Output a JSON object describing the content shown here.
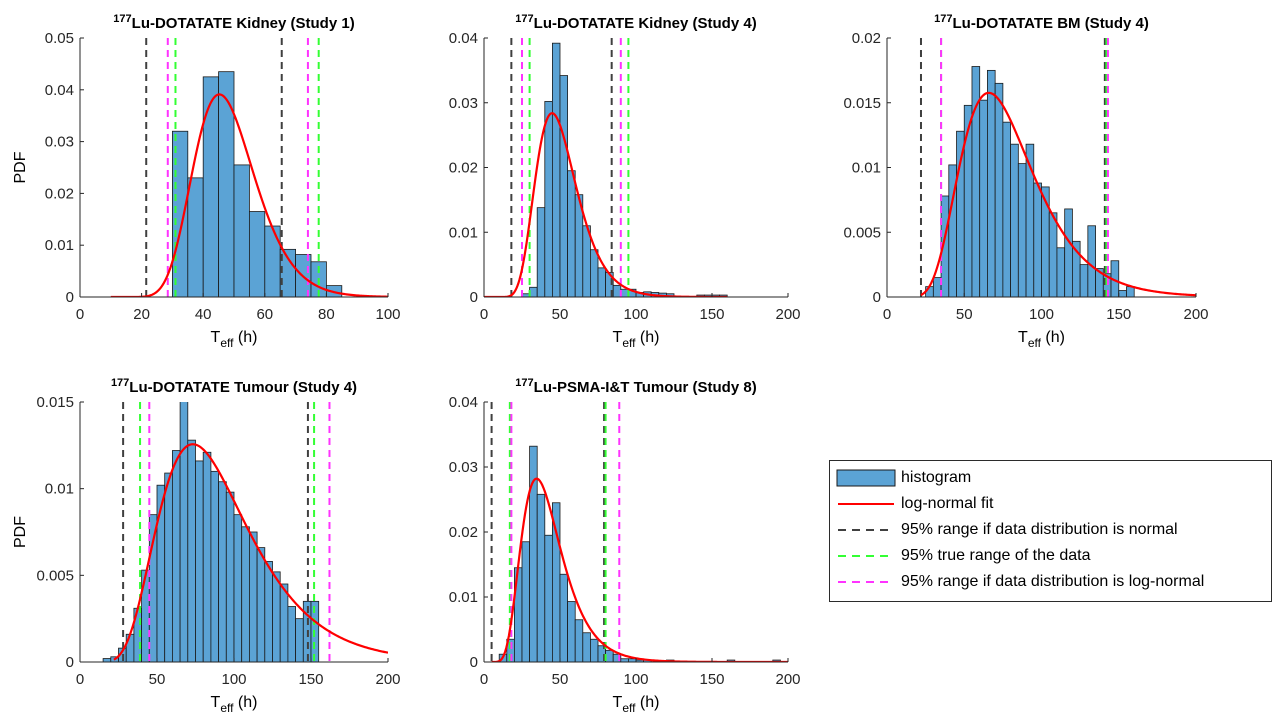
{
  "colors": {
    "histogram_fill": "#5ba3d5",
    "histogram_edge": "#1a1a1a",
    "fit_line": "#ff0000",
    "normal_range": "#404040",
    "true_range": "#33ff33",
    "lognormal_range": "#ff33ff"
  },
  "legend": {
    "items": [
      {
        "key": "histogram",
        "label": "histogram"
      },
      {
        "key": "fit",
        "label": "log-normal fit"
      },
      {
        "key": "normal",
        "label": "95% range if data distribution is normal"
      },
      {
        "key": "true",
        "label": "95% true range of the data"
      },
      {
        "key": "lognormal",
        "label": "95% range if data distribution is log-normal"
      }
    ]
  },
  "chart_data": [
    {
      "type": "bar",
      "title_sup": "177",
      "title": "Lu-DOTATATE Kidney (Study 1)",
      "xlabel_main": "T",
      "xlabel_sub": "eff",
      "xlabel_unit": " (h)",
      "ylabel": "PDF",
      "xlim": [
        0,
        100
      ],
      "ylim": [
        0,
        0.05
      ],
      "xticks": [
        0,
        20,
        40,
        60,
        80,
        100
      ],
      "yticks": [
        0,
        0.01,
        0.02,
        0.03,
        0.04,
        0.05
      ],
      "yticklabels": [
        "0",
        "0.01",
        "0.02",
        "0.03",
        "0.04",
        "0.05"
      ],
      "bin_edges": [
        30,
        35,
        40,
        45,
        50,
        55,
        60,
        65,
        70,
        75,
        80,
        85
      ],
      "bin_values": [
        0.032,
        0.023,
        0.0425,
        0.0435,
        0.0255,
        0.0165,
        0.0137,
        0.0092,
        0.0082,
        0.0068,
        0.0022
      ],
      "fit_lognormal": {
        "median": 47.5,
        "sigma": 0.22,
        "x_start": 10,
        "x_end": 100
      },
      "range_normal": [
        21.5,
        65.5
      ],
      "range_true": [
        31,
        77.5
      ],
      "range_lognormal": [
        28.5,
        74
      ]
    },
    {
      "type": "bar",
      "title_sup": "177",
      "title": "Lu-DOTATATE Kidney (Study 4)",
      "xlabel_main": "T",
      "xlabel_sub": "eff",
      "xlabel_unit": " (h)",
      "ylabel": "",
      "xlim": [
        0,
        200
      ],
      "ylim": [
        0,
        0.04
      ],
      "xticks": [
        0,
        50,
        100,
        150,
        200
      ],
      "yticks": [
        0,
        0.01,
        0.02,
        0.03,
        0.04
      ],
      "yticklabels": [
        "0",
        "0.01",
        "0.02",
        "0.03",
        "0.04"
      ],
      "bin_edges": [
        25,
        30,
        35,
        40,
        45,
        50,
        55,
        60,
        65,
        70,
        75,
        80,
        85,
        90,
        95,
        100,
        105,
        110,
        115,
        120,
        125,
        130,
        135,
        140,
        145,
        150,
        155,
        160
      ],
      "bin_values": [
        0.0005,
        0.0015,
        0.0138,
        0.0302,
        0.0392,
        0.0342,
        0.0195,
        0.0158,
        0.011,
        0.0073,
        0.0045,
        0.0038,
        0.0018,
        0.0012,
        0.0012,
        0.0007,
        0.0008,
        0.0007,
        0.0006,
        0.0005,
        0,
        0,
        0,
        0.0003,
        0.0003,
        0.0003,
        0.0003
      ],
      "fit_lognormal": {
        "median": 49,
        "sigma": 0.3,
        "x_start": 0,
        "x_end": 160
      },
      "range_normal": [
        18,
        84
      ],
      "range_true": [
        30,
        95
      ],
      "range_lognormal": [
        25,
        90
      ]
    },
    {
      "type": "bar",
      "title_sup": "177",
      "title": "Lu-DOTATATE BM (Study 4)",
      "xlabel_main": "T",
      "xlabel_sub": "eff",
      "xlabel_unit": " (h)",
      "ylabel": "",
      "xlim": [
        0,
        200
      ],
      "ylim": [
        0,
        0.02
      ],
      "xticks": [
        0,
        50,
        100,
        150,
        200
      ],
      "yticks": [
        0,
        0.005,
        0.01,
        0.015,
        0.02
      ],
      "yticklabels": [
        "0",
        "0.005",
        "0.01",
        "0.015",
        "0.02"
      ],
      "bin_edges": [
        25,
        30,
        35,
        40,
        45,
        50,
        55,
        60,
        65,
        70,
        75,
        80,
        85,
        90,
        95,
        100,
        105,
        110,
        115,
        120,
        125,
        130,
        135,
        140,
        145,
        150,
        155,
        160,
        165
      ],
      "bin_values": [
        0.0008,
        0.0015,
        0.0078,
        0.0102,
        0.0128,
        0.0148,
        0.0178,
        0.0152,
        0.0175,
        0.0165,
        0.0135,
        0.0118,
        0.0103,
        0.0118,
        0.0088,
        0.0085,
        0.0065,
        0.0038,
        0.0068,
        0.0043,
        0.0025,
        0.0055,
        0.0022,
        0.0018,
        0.0028,
        0.0005,
        0.0008,
        0,
        0.0005
      ],
      "fit_lognormal": {
        "median": 75,
        "sigma": 0.36,
        "x_start": 22,
        "x_end": 200
      },
      "range_normal": [
        22,
        141
      ],
      "range_true": [
        35,
        142
      ],
      "range_lognormal": [
        35,
        143
      ]
    },
    {
      "type": "bar",
      "title_sup": "177",
      "title": "Lu-DOTATATE Tumour (Study 4)",
      "xlabel_main": "T",
      "xlabel_sub": "eff",
      "xlabel_unit": " (h)",
      "ylabel": "PDF",
      "xlim": [
        0,
        200
      ],
      "ylim": [
        0,
        0.015
      ],
      "xticks": [
        0,
        50,
        100,
        150,
        200
      ],
      "yticks": [
        0,
        0.005,
        0.01,
        0.015
      ],
      "yticklabels": [
        "0",
        "0.005",
        "0.01",
        "0.015"
      ],
      "bin_edges": [
        15,
        20,
        25,
        30,
        35,
        40,
        45,
        50,
        55,
        60,
        65,
        70,
        75,
        80,
        85,
        90,
        95,
        100,
        105,
        110,
        115,
        120,
        125,
        130,
        135,
        140,
        145,
        150,
        155
      ],
      "bin_values": [
        0.0002,
        0.0003,
        0.0008,
        0.0016,
        0.0031,
        0.0053,
        0.0085,
        0.0102,
        0.0109,
        0.0122,
        0.0155,
        0.0128,
        0.0116,
        0.0121,
        0.011,
        0.0104,
        0.0098,
        0.0085,
        0.0078,
        0.0075,
        0.0066,
        0.0058,
        0.0052,
        0.0045,
        0.0032,
        0.0025,
        0.0035,
        0.0035,
        0.0008
      ],
      "fit_lognormal": {
        "median": 86,
        "sigma": 0.4,
        "x_start": 22,
        "x_end": 200
      },
      "range_normal": [
        28,
        148
      ],
      "range_true": [
        39,
        152
      ],
      "range_lognormal": [
        45,
        162
      ]
    },
    {
      "type": "bar",
      "title_sup": "177",
      "title": "Lu-PSMA-I&T Tumour (Study 8)",
      "xlabel_main": "T",
      "xlabel_sub": "eff",
      "xlabel_unit": " (h)",
      "ylabel": "",
      "xlim": [
        0,
        200
      ],
      "ylim": [
        0,
        0.04
      ],
      "xticks": [
        0,
        50,
        100,
        150,
        200
      ],
      "yticks": [
        0,
        0.01,
        0.02,
        0.03,
        0.04
      ],
      "yticklabels": [
        "0",
        "0.01",
        "0.02",
        "0.03",
        "0.04"
      ],
      "bin_edges": [
        10,
        15,
        20,
        25,
        30,
        35,
        40,
        45,
        50,
        55,
        60,
        65,
        70,
        75,
        80,
        85,
        90,
        95,
        100,
        105,
        110,
        115,
        120,
        125,
        130,
        135,
        140,
        145,
        150,
        155,
        160,
        165,
        170,
        175,
        180,
        185,
        190,
        195
      ],
      "bin_values": [
        0.0012,
        0.0035,
        0.0145,
        0.0185,
        0.0332,
        0.0258,
        0.0195,
        0.0245,
        0.0135,
        0.0093,
        0.0065,
        0.0045,
        0.0035,
        0.0025,
        0.0018,
        0.0012,
        0.0005,
        0.0005,
        0.0003,
        0.0003,
        0,
        0,
        0.0003,
        0,
        0,
        0,
        0,
        0,
        0,
        0,
        0.0003,
        0,
        0,
        0,
        0,
        0,
        0.0003
      ],
      "fit_lognormal": {
        "median": 40,
        "sigma": 0.38,
        "x_start": 5,
        "x_end": 200
      },
      "range_normal": [
        5,
        79
      ],
      "range_true": [
        17,
        80
      ],
      "range_lognormal": [
        18,
        89
      ]
    }
  ]
}
